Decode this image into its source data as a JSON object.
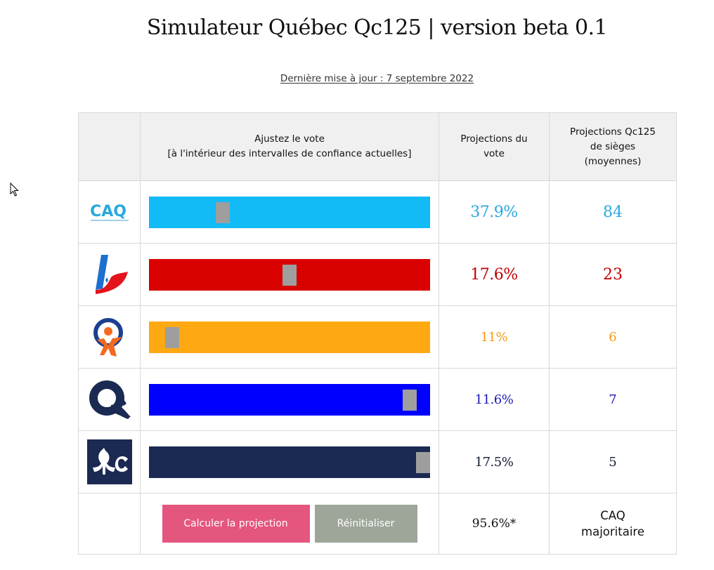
{
  "header": {
    "title": "Simulateur Québec Qc125 | version beta 0.1",
    "updated": "Dernière mise à jour : 7 septembre 2022"
  },
  "table": {
    "col_slider_line1": "Ajustez le vote",
    "col_slider_line2": "[à l'intérieur des intervalles de confiance actuelles]",
    "col_vote_line1": "Projections du",
    "col_vote_line2": "vote",
    "col_seat_line1": "Projections Qc125",
    "col_seat_line2": "de sièges",
    "col_seat_line3": "(moyennes)"
  },
  "parties": [
    {
      "vote": "37.9%",
      "seats": "84",
      "color": "#12baf6",
      "text_color": "#29a8dd",
      "slider_position": 0.25,
      "logo_text": "CAQ"
    },
    {
      "vote": "17.6%",
      "seats": "23",
      "color": "#d90000",
      "text_color": "#c30000",
      "slider_position": 0.5
    },
    {
      "vote": "11%",
      "seats": "6",
      "color": "#ffa912",
      "text_color": "#f39a12",
      "slider_position": 0.06
    },
    {
      "vote": "11.6%",
      "seats": "7",
      "color": "#0000ff",
      "text_color": "#1a1ab5",
      "slider_position": 0.95
    },
    {
      "vote": "17.5%",
      "seats": "5",
      "color": "#1a2a52",
      "text_color": "#111a33",
      "slider_position": 1.0
    }
  ],
  "actions": {
    "calculate_label": "Calculer la projection",
    "reset_label": "Réinitialiser",
    "total_vote": "95.6%*",
    "verdict_line1": "CAQ",
    "verdict_line2": "majoritaire"
  },
  "colors": {
    "calculate_button": "#e5567f",
    "reset_button": "#9ea69a",
    "thumb": "#9e9e9e",
    "header_bg": "#f0f0f0"
  }
}
